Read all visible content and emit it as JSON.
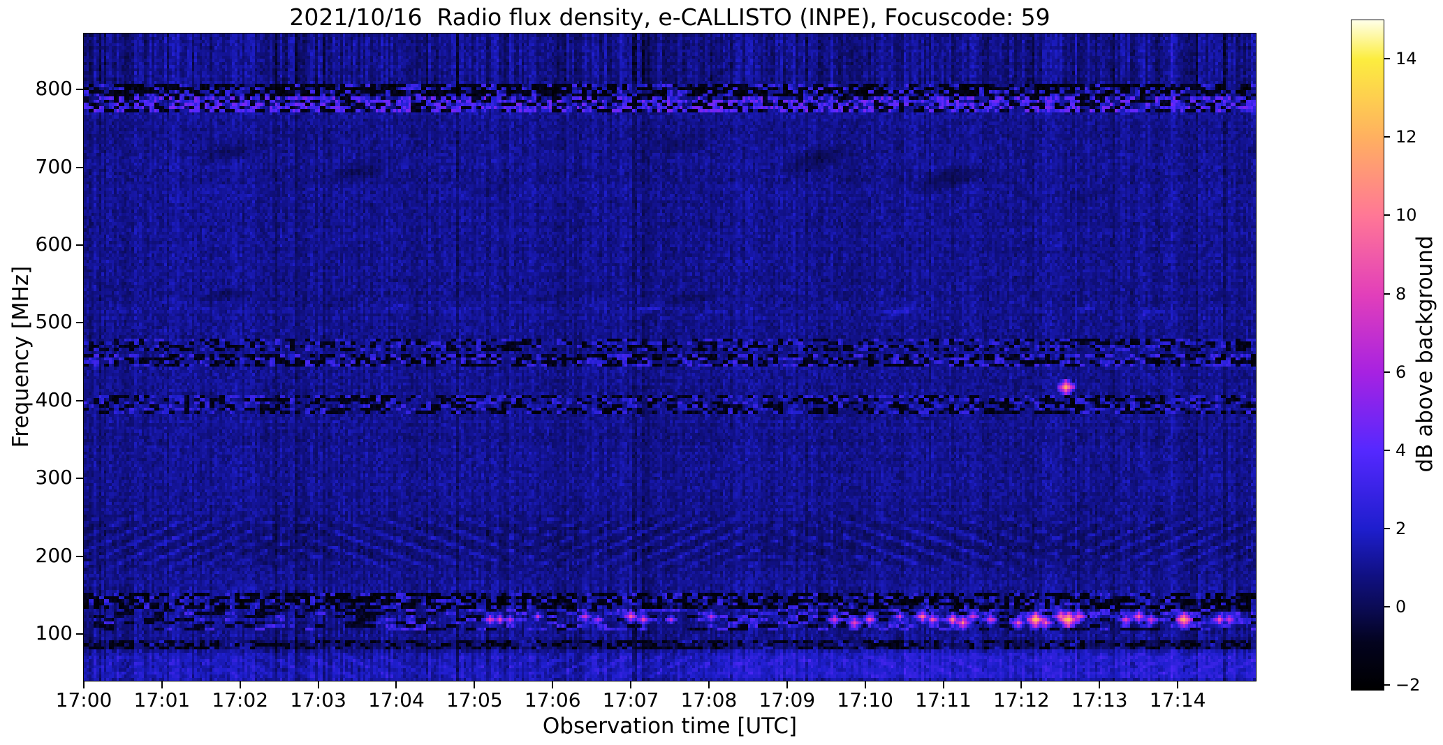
{
  "figure": {
    "title": "2021/10/16  Radio flux density, e-CALLISTO (INPE), Focuscode: 59"
  },
  "chart_data": {
    "type": "heatmap",
    "title": "2021/10/16  Radio flux density, e-CALLISTO (INPE), Focuscode: 59",
    "xlabel": "Observation time [UTC]",
    "ylabel": "Frequency [MHz]",
    "colorbar_label": "dB above background",
    "x_ticks": [
      {
        "minute": 0,
        "label": "17:00"
      },
      {
        "minute": 1,
        "label": "17:01"
      },
      {
        "minute": 2,
        "label": "17:02"
      },
      {
        "minute": 3,
        "label": "17:03"
      },
      {
        "minute": 4,
        "label": "17:04"
      },
      {
        "minute": 5,
        "label": "17:05"
      },
      {
        "minute": 6,
        "label": "17:06"
      },
      {
        "minute": 7,
        "label": "17:07"
      },
      {
        "minute": 8,
        "label": "17:08"
      },
      {
        "minute": 9,
        "label": "17:09"
      },
      {
        "minute": 10,
        "label": "17:10"
      },
      {
        "minute": 11,
        "label": "17:11"
      },
      {
        "minute": 12,
        "label": "17:12"
      },
      {
        "minute": 13,
        "label": "17:13"
      },
      {
        "minute": 14,
        "label": "17:14"
      }
    ],
    "xlim_minutes": [
      0,
      15
    ],
    "y_ticks": [
      {
        "mhz": 100,
        "label": "100"
      },
      {
        "mhz": 200,
        "label": "200"
      },
      {
        "mhz": 300,
        "label": "300"
      },
      {
        "mhz": 400,
        "label": "400"
      },
      {
        "mhz": 500,
        "label": "500"
      },
      {
        "mhz": 600,
        "label": "600"
      },
      {
        "mhz": 700,
        "label": "700"
      },
      {
        "mhz": 800,
        "label": "800"
      }
    ],
    "ylim_mhz": [
      40,
      872
    ],
    "colorbar_ticks": [
      {
        "value": -2,
        "label": "−2"
      },
      {
        "value": 0,
        "label": "0"
      },
      {
        "value": 2,
        "label": "2"
      },
      {
        "value": 4,
        "label": "4"
      },
      {
        "value": 6,
        "label": "6"
      },
      {
        "value": 8,
        "label": "8"
      },
      {
        "value": 10,
        "label": "10"
      },
      {
        "value": 12,
        "label": "12"
      },
      {
        "value": 14,
        "label": "14"
      }
    ],
    "clim_db": [
      -2.1,
      15
    ],
    "colormap": {
      "name": "gnuplot2-like",
      "stops": [
        [
          0.0,
          0,
          0,
          0
        ],
        [
          0.07,
          3,
          3,
          30
        ],
        [
          0.123,
          11,
          11,
          85
        ],
        [
          0.17,
          16,
          16,
          130
        ],
        [
          0.24,
          30,
          30,
          205
        ],
        [
          0.357,
          85,
          40,
          255
        ],
        [
          0.474,
          167,
          34,
          225
        ],
        [
          0.59,
          226,
          63,
          186
        ],
        [
          0.708,
          255,
          119,
          150
        ],
        [
          0.825,
          255,
          176,
          96
        ],
        [
          0.942,
          252,
          237,
          63
        ],
        [
          1.0,
          255,
          255,
          232
        ]
      ]
    },
    "grid": {
      "cols": 466,
      "rows": 206
    },
    "base": {
      "seed": 20211016,
      "mean": 1.02,
      "noise": 0.8,
      "col_gain": 1.1,
      "dark_col_prob": 0.07,
      "dark_col_amount": -0.85,
      "bright_col_prob": 0.05,
      "bright_col_amount": 0.5,
      "row_gain": 0.25,
      "stripe_weight_high": 1.25,
      "stripe_weight_mid": 0.55,
      "stripe_weight_low": 1.0,
      "high_band_start_mhz": 808,
      "low_band_end_mhz": 160,
      "high_band_offset": -0.1
    },
    "features": [
      {
        "kind": "speckle",
        "name": "rfi-band-795-809",
        "f0": 793,
        "f1": 809,
        "block": 2,
        "dark_prob": 0.55,
        "dark": [
          -2.1,
          -0.6
        ],
        "bright_prob": 0.2,
        "bright": [
          1.5,
          3.5
        ]
      },
      {
        "kind": "speckle",
        "name": "rfi-band-771-793",
        "f0": 771,
        "f1": 793,
        "block": 2,
        "dark_prob": 0.28,
        "dark": [
          -1.8,
          -0.4
        ],
        "bright_prob": 0.5,
        "bright": [
          2.0,
          5.0
        ]
      },
      {
        "kind": "smudge",
        "name": "dark-smudges-650-750",
        "f0": 645,
        "f1": 750,
        "amp": -1.0,
        "st": 0.055,
        "sf": 0.28,
        "thr": 0.52,
        "p": [
          1.3,
          4.1,
          2.2
        ]
      },
      {
        "kind": "smudge",
        "name": "bright-smudges-517",
        "f0": 505,
        "f1": 528,
        "amp": 0.95,
        "st": 0.13,
        "sf": 0.8,
        "thr": 0.42,
        "p": [
          0.4,
          2.7,
          5.1
        ]
      },
      {
        "kind": "smudge",
        "name": "dark-smudges-535",
        "f0": 518,
        "f1": 552,
        "amp": -0.75,
        "st": 0.07,
        "sf": 0.5,
        "thr": 0.55,
        "p": [
          3.9,
          1.1,
          0.6
        ]
      },
      {
        "kind": "speckle",
        "name": "noise-band-473",
        "f0": 466,
        "f1": 481,
        "block": 2,
        "dark_prob": 0.3,
        "dark": [
          -1.8,
          -0.4
        ],
        "bright_prob": 0.18,
        "bright": [
          1.6,
          3.0
        ]
      },
      {
        "kind": "speckle",
        "name": "noise-band-450",
        "f0": 442,
        "f1": 459,
        "block": 2,
        "dark_prob": 0.38,
        "dark": [
          -2.0,
          -0.5
        ],
        "bright_prob": 0.25,
        "bright": [
          1.8,
          3.5
        ]
      },
      {
        "kind": "speckle",
        "name": "noise-band-395",
        "f0": 383,
        "f1": 407,
        "block": 2,
        "dark_prob": 0.34,
        "dark": [
          -1.9,
          -0.45
        ],
        "bright_prob": 0.22,
        "bright": [
          1.7,
          3.2
        ]
      },
      {
        "kind": "wavy",
        "name": "wavy-interference-180-258",
        "f0": 178,
        "f1": 258,
        "amp": 1.35,
        "dip": -0.5,
        "lift": 0.0,
        "k": [
          0.52,
          1.45,
          0.38,
          -1.25
        ],
        "mixk": 0.031,
        "p": [
          0.7,
          2.3,
          4.4
        ]
      },
      {
        "kind": "speckle",
        "name": "dark-band-143",
        "f0": 134,
        "f1": 152,
        "block": 2,
        "dark_prob": 0.5,
        "dark": [
          -2.1,
          -0.6
        ],
        "bright_prob": 0.15,
        "bright": [
          1.5,
          3.2
        ]
      },
      {
        "kind": "speckle",
        "name": "active-band-120",
        "f0": 106,
        "f1": 134,
        "block": 4,
        "dark_prob": 0.22,
        "dark": [
          -1.5,
          -0.3
        ],
        "bright_prob": 0.26,
        "bright": [
          1.6,
          4.0
        ],
        "bright_ramp": [
          0.35,
          1.45
        ]
      },
      {
        "kind": "level",
        "name": "dark-stripe-86",
        "f0": 79,
        "f1": 93,
        "dv": -0.55
      },
      {
        "kind": "speckle",
        "name": "dark-stripe-86-speckle",
        "f0": 79,
        "f1": 93,
        "block": 2,
        "dark_prob": 0.35,
        "dark": [
          -2.0,
          -0.6
        ],
        "bright_prob": 0.08,
        "bright": [
          1.2,
          2.2
        ]
      },
      {
        "kind": "wavy",
        "name": "bottom-bright-wavy",
        "f0": 40,
        "f1": 80,
        "amp": 0.85,
        "dip": -0.15,
        "lift": 0.7,
        "k": [
          0.5,
          1.3,
          0.42,
          -1.15
        ],
        "mixk": 0.027,
        "p": [
          2.1,
          0.9,
          3.3
        ]
      },
      {
        "kind": "ramp",
        "name": "bottom-brightening-after-1706",
        "f0": 44,
        "f1": 80,
        "t0": 6.3,
        "t1": 9.0,
        "dv": 0.55
      },
      {
        "kind": "level",
        "name": "bottom-edge-bright",
        "f0": 40,
        "f1": 52,
        "dv": 0.35
      }
    ],
    "bursts": {
      "note": "bright RFI bursts, time in minutes after 17:00 UTC, freq MHz, peak dB",
      "points": [
        {
          "t": 5.18,
          "f": 121,
          "v": 8.2
        },
        {
          "t": 5.32,
          "f": 119,
          "v": 7.6
        },
        {
          "t": 5.45,
          "f": 122,
          "v": 6.8
        },
        {
          "t": 5.78,
          "f": 123,
          "v": 6.5
        },
        {
          "t": 6.42,
          "f": 125,
          "v": 7.8
        },
        {
          "t": 6.58,
          "f": 121,
          "v": 6.9
        },
        {
          "t": 7.0,
          "f": 124,
          "v": 8.6
        },
        {
          "t": 7.14,
          "f": 120,
          "v": 8.0
        },
        {
          "t": 7.5,
          "f": 122,
          "v": 6.6
        },
        {
          "t": 8.02,
          "f": 123,
          "v": 7.2
        },
        {
          "t": 9.58,
          "f": 121,
          "v": 8.0
        },
        {
          "t": 9.84,
          "f": 118,
          "v": 9.0
        },
        {
          "t": 10.05,
          "f": 119,
          "v": 8.4
        },
        {
          "t": 10.42,
          "f": 123,
          "v": 6.8
        },
        {
          "t": 10.72,
          "f": 124,
          "v": 9.2
        },
        {
          "t": 10.85,
          "f": 120,
          "v": 8.2
        },
        {
          "t": 11.12,
          "f": 122,
          "v": 9.6
        },
        {
          "t": 11.24,
          "f": 118,
          "v": 10.2
        },
        {
          "t": 11.36,
          "f": 123,
          "v": 8.0
        },
        {
          "t": 11.6,
          "f": 120,
          "v": 8.2
        },
        {
          "t": 11.95,
          "f": 118,
          "v": 8.6
        },
        {
          "t": 12.18,
          "f": 121,
          "v": 12.6
        },
        {
          "t": 12.3,
          "f": 118,
          "v": 9.0
        },
        {
          "t": 12.48,
          "f": 124,
          "v": 10.0
        },
        {
          "t": 12.6,
          "f": 120,
          "v": 13.0
        },
        {
          "t": 12.72,
          "f": 123,
          "v": 9.2
        },
        {
          "t": 13.32,
          "f": 122,
          "v": 8.2
        },
        {
          "t": 13.48,
          "f": 124,
          "v": 9.0
        },
        {
          "t": 13.64,
          "f": 121,
          "v": 8.0
        },
        {
          "t": 14.08,
          "f": 122,
          "v": 12.2
        },
        {
          "t": 14.52,
          "f": 121,
          "v": 8.4
        },
        {
          "t": 14.65,
          "f": 119,
          "v": 7.4
        },
        {
          "t": 12.55,
          "f": 421,
          "v": 11.5
        }
      ]
    }
  }
}
